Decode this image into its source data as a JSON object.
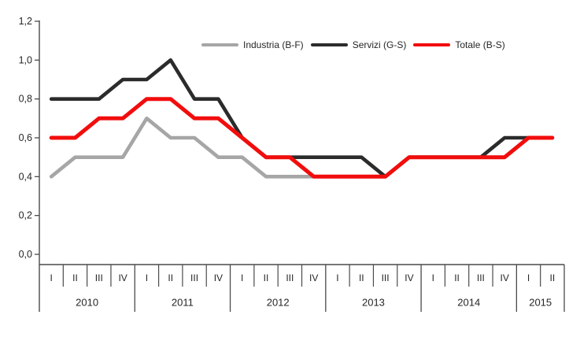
{
  "chart_data": {
    "type": "line",
    "title": "",
    "categories": [
      "2010 I",
      "2010 II",
      "2010 III",
      "2010 IV",
      "2011 I",
      "2011 II",
      "2011 III",
      "2011 IV",
      "2012 I",
      "2012 II",
      "2012 III",
      "2012 IV",
      "2013 I",
      "2013 II",
      "2013 III",
      "2013 IV",
      "2014 I",
      "2014 II",
      "2014 III",
      "2014 IV",
      "2015 I",
      "2015 II"
    ],
    "year_groups": [
      {
        "year": "2010",
        "quarters": [
          "I",
          "II",
          "III",
          "IV"
        ]
      },
      {
        "year": "2011",
        "quarters": [
          "I",
          "II",
          "III",
          "IV"
        ]
      },
      {
        "year": "2012",
        "quarters": [
          "I",
          "II",
          "III",
          "IV"
        ]
      },
      {
        "year": "2013",
        "quarters": [
          "I",
          "II",
          "III",
          "IV"
        ]
      },
      {
        "year": "2014",
        "quarters": [
          "I",
          "II",
          "III",
          "IV"
        ]
      },
      {
        "year": "2015",
        "quarters": [
          "I",
          "II"
        ]
      }
    ],
    "series": [
      {
        "name": "Industria (B-F)",
        "color": "#a6a6a6",
        "values": [
          0.4,
          0.5,
          0.5,
          0.5,
          0.7,
          0.6,
          0.6,
          0.5,
          0.5,
          0.4,
          0.4,
          0.4,
          0.4,
          0.4,
          0.4,
          0.5,
          0.5,
          0.5,
          0.5,
          0.5,
          0.6,
          0.6
        ]
      },
      {
        "name": "Servizi (G-S)",
        "color": "#2b2b2b",
        "values": [
          0.8,
          0.8,
          0.8,
          0.9,
          0.9,
          1.0,
          0.8,
          0.8,
          0.6,
          0.5,
          0.5,
          0.5,
          0.5,
          0.5,
          0.4,
          0.5,
          0.5,
          0.5,
          0.5,
          0.6,
          0.6,
          0.6
        ]
      },
      {
        "name": "Totale (B-S)",
        "color": "#f20d0d",
        "values": [
          0.6,
          0.6,
          0.7,
          0.7,
          0.8,
          0.8,
          0.7,
          0.7,
          0.6,
          0.5,
          0.5,
          0.4,
          0.4,
          0.4,
          0.4,
          0.5,
          0.5,
          0.5,
          0.5,
          0.5,
          0.6,
          0.6
        ]
      }
    ],
    "ylim": [
      0.0,
      1.2
    ],
    "ytick_values": [
      1.2,
      1.0,
      0.8,
      0.6,
      0.4,
      0.2,
      0.0
    ],
    "ytick_labels": [
      "1,2",
      "1,0",
      "0,8",
      "0,6",
      "0,4",
      "0,2",
      "0,0"
    ],
    "xlabel": "",
    "ylabel": "",
    "grid": "off",
    "legend_position": "top-center-inside",
    "axis_color": "#4a4a4a",
    "text_color": "#262626"
  }
}
